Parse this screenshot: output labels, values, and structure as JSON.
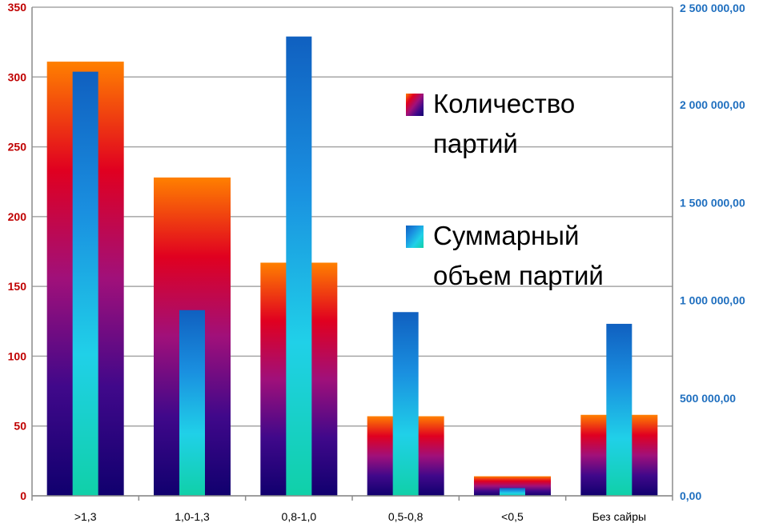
{
  "chart_data": {
    "type": "bar",
    "categories": [
      ">1,3",
      "1,0-1,3",
      "0,8-1,0",
      "0,5-0,8",
      "<0,5",
      "Без сайры"
    ],
    "series": [
      {
        "name": "Количество партий",
        "axis": "left",
        "values": [
          311,
          228,
          167,
          57,
          14,
          58
        ],
        "gradient": [
          "#ff8000",
          "#e00020",
          "#a0107a",
          "#40088a",
          "#10006e"
        ]
      },
      {
        "name": "Суммарный объем партий",
        "axis": "right",
        "values": [
          2170000,
          950000,
          2350000,
          940000,
          40000,
          880000
        ],
        "gradient": [
          "#1060c0",
          "#1a90e0",
          "#20d0e8",
          "#10d0a8"
        ]
      }
    ],
    "y_left": {
      "range": [
        0,
        350
      ],
      "ticks": [
        "0",
        "50",
        "100",
        "150",
        "200",
        "250",
        "300",
        "350"
      ],
      "color": "#c00000"
    },
    "y_right": {
      "range": [
        0,
        2500000
      ],
      "ticks": [
        "0,00",
        "500 000,00",
        "1 000 000,00",
        "1 500 000,00",
        "2 000 000,00",
        "2 500 000,00"
      ],
      "color": "#1f6fbf"
    },
    "grid": true,
    "legend": {
      "placement": "right-inside",
      "items": [
        {
          "lines": [
            "Количество",
            "партий"
          ]
        },
        {
          "lines": [
            "Суммарный",
            "объем партий"
          ]
        }
      ]
    }
  }
}
